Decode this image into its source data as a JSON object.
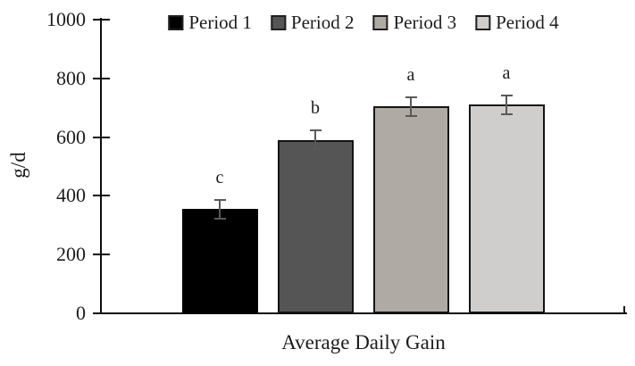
{
  "figure_title": "Bar chart of average daily gain by period",
  "chart_data": {
    "type": "bar",
    "title": "",
    "xlabel": "Average Daily Gain",
    "ylabel": "g/d",
    "categories": [
      "Average Daily Gain"
    ],
    "series": [
      {
        "name": "Period 1",
        "value": 355,
        "error": 32,
        "sig_letter": "c",
        "fill": "#000000",
        "border": "#000000"
      },
      {
        "name": "Period 2",
        "value": 590,
        "error": 32,
        "sig_letter": "b",
        "fill": "#555555",
        "border": "#141414"
      },
      {
        "name": "Period 3",
        "value": 705,
        "error": 32,
        "sig_letter": "a",
        "fill": "#b0aaa5",
        "border": "#141414"
      },
      {
        "name": "Period 4",
        "value": 710,
        "error": 31,
        "sig_letter": "a",
        "fill": "#d0cecc",
        "border": "#141414"
      }
    ],
    "ylim": [
      0,
      1000
    ],
    "yticks": [
      0,
      200,
      400,
      600,
      800,
      1000
    ],
    "grid": false,
    "legend_position": "top",
    "error_bar_color": "#595959",
    "axis_color": "#0d0d0d"
  }
}
